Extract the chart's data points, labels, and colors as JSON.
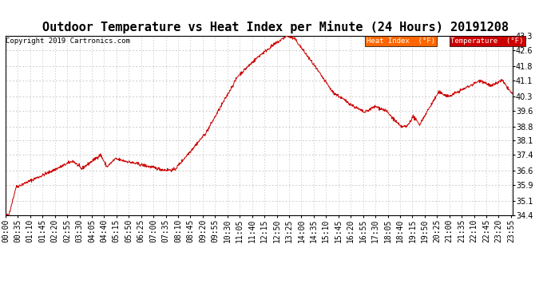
{
  "title": "Outdoor Temperature vs Heat Index per Minute (24 Hours) 20191208",
  "copyright": "Copyright 2019 Cartronics.com",
  "ylim": [
    34.4,
    43.3
  ],
  "yticks": [
    34.4,
    35.1,
    35.9,
    36.6,
    37.4,
    38.1,
    38.8,
    39.6,
    40.3,
    41.1,
    41.8,
    42.6,
    43.3
  ],
  "background_color": "#ffffff",
  "grid_color": "#bbbbbb",
  "line_color": "#cc0000",
  "legend_heat_index_bg": "#ff6600",
  "legend_temp_bg": "#cc0000",
  "legend_heat_index_label": "Heat Index  (°F)",
  "legend_temp_label": "Temperature  (°F)",
  "title_fontsize": 11,
  "copyright_fontsize": 6.5,
  "tick_fontsize": 7
}
